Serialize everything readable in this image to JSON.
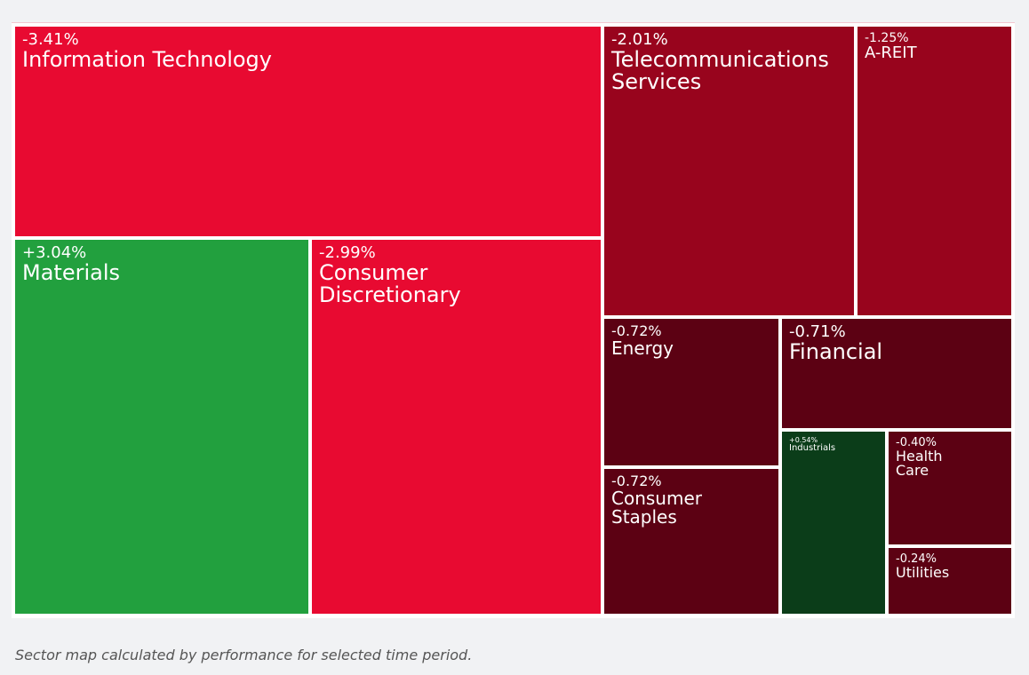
{
  "chart_data": {
    "type": "treemap",
    "categories": [
      "Information Technology",
      "Materials",
      "Consumer Discretionary",
      "Telecommunications Services",
      "A-REIT",
      "Energy",
      "Financial",
      "Consumer Staples",
      "Industrials",
      "Health Care",
      "Utilities"
    ],
    "values": [
      -3.41,
      3.04,
      -2.99,
      -2.01,
      -1.25,
      -0.72,
      -0.71,
      -0.72,
      0.54,
      -0.4,
      -0.24
    ],
    "value_labels": [
      "-3.41%",
      "+3.04%",
      "-2.99%",
      "-2.01%",
      "-1.25%",
      "-0.72%",
      "-0.71%",
      "-0.72%",
      "+0.54%",
      "-0.40%",
      "-0.24%"
    ],
    "colors": [
      "#e80a31",
      "#22a03e",
      "#e80a31",
      "#98041d",
      "#98041d",
      "#5c0113",
      "#5c0113",
      "#5c0113",
      "#0b3d19",
      "#5c0113",
      "#5c0113"
    ],
    "caption": "Sector map calculated by performance for selected time period."
  }
}
